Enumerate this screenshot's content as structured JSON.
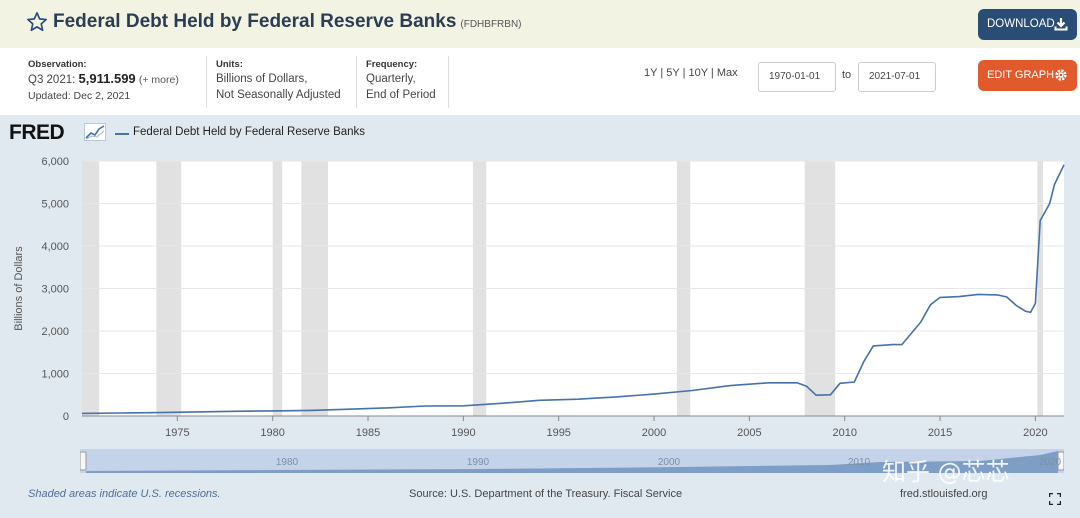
{
  "header": {
    "title": "Federal Debt Held by Federal Reserve Banks",
    "series_id": "(FDHBFRBN)",
    "download_label": "DOWNLOAD"
  },
  "meta": {
    "observation_label": "Observation:",
    "observation_period": "Q3 2021:",
    "observation_value": "5,911.599",
    "observation_more": "(+ more)",
    "updated": "Updated: Dec 2, 2021",
    "units_label": "Units:",
    "units_line1": "Billions of Dollars,",
    "units_line2": "Not Seasonally Adjusted",
    "frequency_label": "Frequency:",
    "frequency_line1": "Quarterly,",
    "frequency_line2": "End of Period"
  },
  "controls": {
    "ranges": [
      "1Y",
      "5Y",
      "10Y",
      "Max"
    ],
    "start_date": "1970-01-01",
    "to_label": "to",
    "end_date": "2021-07-01",
    "edit_label": "EDIT GRAPH"
  },
  "logo_text": "FRED",
  "footer": {
    "recession_note": "Shaded areas indicate U.S. recessions.",
    "source": "Source: U.S. Department of the Treasury. Fiscal Service",
    "url": "fred.stlouisfed.org"
  },
  "watermark": "知乎 @芯芯",
  "colors": {
    "line": "#4572a7",
    "recession": "#e1e1e1",
    "background": "#e1e9f0",
    "download": "#2a4d76",
    "edit": "#e05a2b"
  },
  "chart_data": {
    "type": "line",
    "ylabel": "Billions of Dollars",
    "ylim": [
      0,
      6000
    ],
    "xlim": [
      1970,
      2021.5
    ],
    "yticks": [
      0,
      1000,
      2000,
      3000,
      4000,
      5000,
      6000
    ],
    "yticklabels": [
      "0",
      "1,000",
      "2,000",
      "3,000",
      "4,000",
      "5,000",
      "6,000"
    ],
    "xticks": [
      1975,
      1980,
      1985,
      1990,
      1995,
      2000,
      2005,
      2010,
      2015,
      2020
    ],
    "navigator_labels": [
      "1980",
      "1990",
      "2000",
      "2010",
      "2020"
    ],
    "grid": true,
    "legend_position": "top-left",
    "recessions": [
      [
        1970.0,
        1970.9
      ],
      [
        1973.9,
        1975.2
      ],
      [
        1980.0,
        1980.5
      ],
      [
        1981.5,
        1982.9
      ],
      [
        1990.5,
        1991.2
      ],
      [
        2001.2,
        2001.9
      ],
      [
        2007.9,
        2009.5
      ],
      [
        2020.1,
        2020.4
      ]
    ],
    "series": [
      {
        "name": "Federal Debt Held by Federal Reserve Banks",
        "x": [
          1970,
          1972,
          1974,
          1976,
          1978,
          1980,
          1982,
          1984,
          1986,
          1988,
          1990,
          1992,
          1994,
          1996,
          1998,
          2000,
          2002,
          2004,
          2006,
          2007.5,
          2008.0,
          2008.5,
          2009.25,
          2009.75,
          2010.5,
          2011.0,
          2011.5,
          2012.5,
          2013.0,
          2013.5,
          2014.0,
          2014.5,
          2015.0,
          2016.0,
          2017.0,
          2018.0,
          2018.5,
          2019.0,
          2019.5,
          2019.75,
          2020.0,
          2020.25,
          2020.75,
          2021.0,
          2021.5
        ],
        "y": [
          62,
          71,
          80,
          96,
          110,
          120,
          132,
          160,
          190,
          235,
          240,
          300,
          370,
          395,
          450,
          515,
          600,
          715,
          780,
          780,
          700,
          490,
          500,
          770,
          800,
          1280,
          1650,
          1680,
          1680,
          1950,
          2220,
          2620,
          2790,
          2810,
          2860,
          2850,
          2800,
          2600,
          2460,
          2440,
          2650,
          4600,
          5000,
          5450,
          5911.6
        ]
      }
    ]
  }
}
